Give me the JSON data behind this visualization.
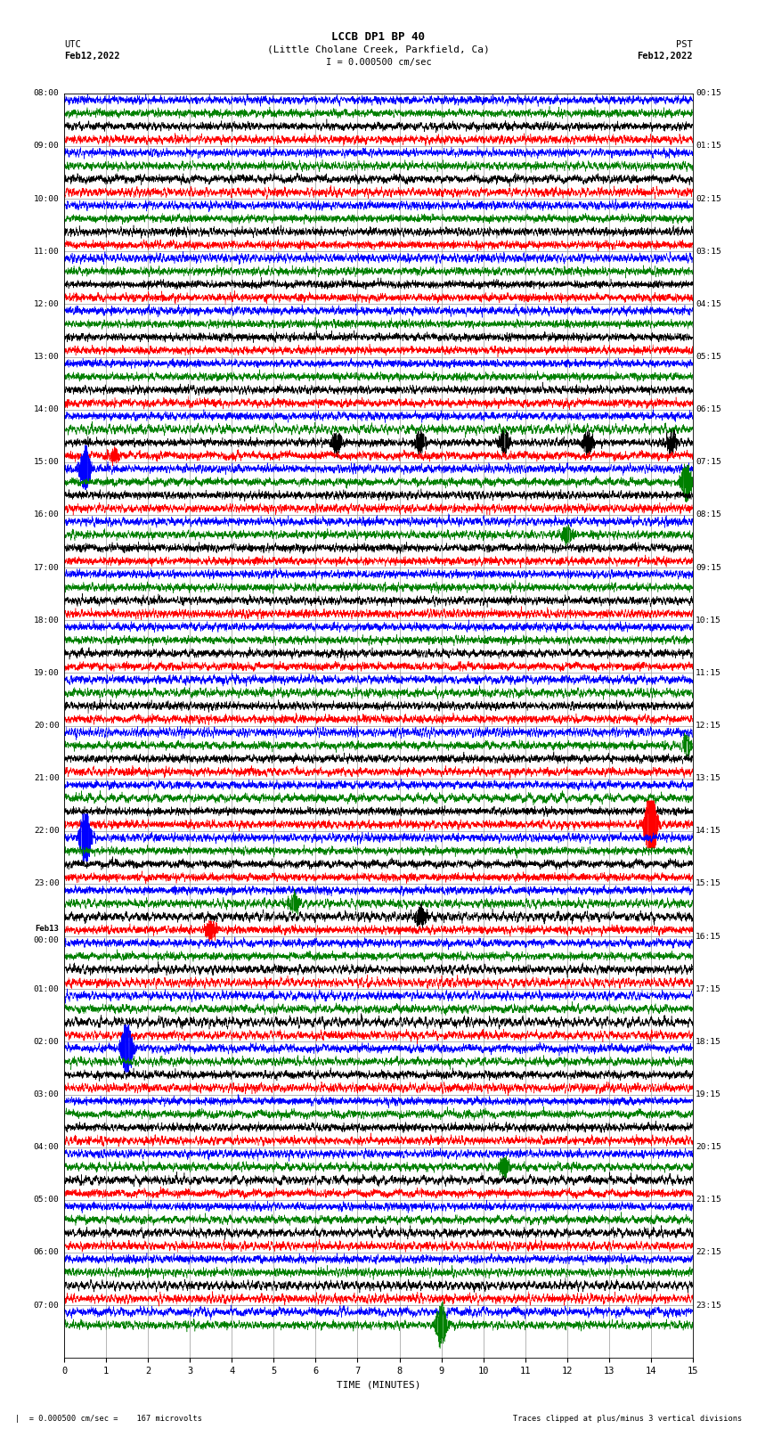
{
  "title_line1": "LCCB DP1 BP 40",
  "title_line2": "(Little Cholane Creek, Parkfield, Ca)",
  "scale_label": "I = 0.000500 cm/sec",
  "left_label_top": "UTC",
  "left_label_date": "Feb12,2022",
  "right_label_top": "PST",
  "right_label_date": "Feb12,2022",
  "bottom_label": "TIME (MINUTES)",
  "footnote_left": "= 0.000500 cm/sec =    167 microvolts",
  "footnote_right": "Traces clipped at plus/minus 3 vertical divisions",
  "xlabel_ticks": [
    0,
    1,
    2,
    3,
    4,
    5,
    6,
    7,
    8,
    9,
    10,
    11,
    12,
    13,
    14,
    15
  ],
  "utc_labels": [
    "08:00",
    "09:00",
    "10:00",
    "11:00",
    "12:00",
    "13:00",
    "14:00",
    "15:00",
    "16:00",
    "17:00",
    "18:00",
    "19:00",
    "20:00",
    "21:00",
    "22:00",
    "23:00",
    "00:00",
    "01:00",
    "02:00",
    "03:00",
    "04:00",
    "05:00",
    "06:00",
    "07:00"
  ],
  "pst_labels": [
    "00:15",
    "01:15",
    "02:15",
    "03:15",
    "04:15",
    "05:15",
    "06:15",
    "07:15",
    "08:15",
    "09:15",
    "10:15",
    "11:15",
    "12:15",
    "13:15",
    "14:15",
    "15:15",
    "16:15",
    "17:15",
    "18:15",
    "19:15",
    "20:15",
    "21:15",
    "22:15",
    "23:15"
  ],
  "trace_colors": [
    "black",
    "red",
    "blue",
    "green"
  ],
  "n_rows": 24,
  "traces_per_row": 4,
  "noise_amplitude": 0.12,
  "bg_color": "white",
  "plot_bg": "white",
  "grid_color": "#999999",
  "grid_linewidth": 0.5,
  "trace_linewidth": 0.35,
  "minutes": 15,
  "feb13_row": 16,
  "events": [
    {
      "row": 7,
      "color": "blue",
      "times": [
        0.5
      ],
      "amp": 1.8
    },
    {
      "row": 7,
      "color": "green",
      "times": [
        14.85
      ],
      "amp": 1.5
    },
    {
      "row": 7,
      "color": "black",
      "times": [
        6.5,
        8.5,
        10.5,
        12.5,
        14.5
      ],
      "amp": 0.9
    },
    {
      "row": 7,
      "color": "red",
      "times": [
        1.2
      ],
      "amp": 0.6
    },
    {
      "row": 14,
      "color": "blue",
      "times": [
        0.5
      ],
      "amp": 2.5
    },
    {
      "row": 14,
      "color": "red",
      "times": [
        14.0
      ],
      "amp": 3.5
    },
    {
      "row": 15,
      "color": "green",
      "times": [
        5.5
      ],
      "amp": 0.8
    },
    {
      "row": 16,
      "color": "black",
      "times": [
        8.5
      ],
      "amp": 0.8
    },
    {
      "row": 16,
      "color": "red",
      "times": [
        3.5
      ],
      "amp": 0.8
    },
    {
      "row": 18,
      "color": "blue",
      "times": [
        1.5
      ],
      "amp": 2.5
    },
    {
      "row": 8,
      "color": "green",
      "times": [
        12.0
      ],
      "amp": 0.8
    },
    {
      "row": 12,
      "color": "green",
      "times": [
        14.85
      ],
      "amp": 0.8
    },
    {
      "row": 20,
      "color": "green",
      "times": [
        10.5
      ],
      "amp": 0.8
    },
    {
      "row": 23,
      "color": "green",
      "times": [
        9.0
      ],
      "amp": 1.8
    }
  ]
}
